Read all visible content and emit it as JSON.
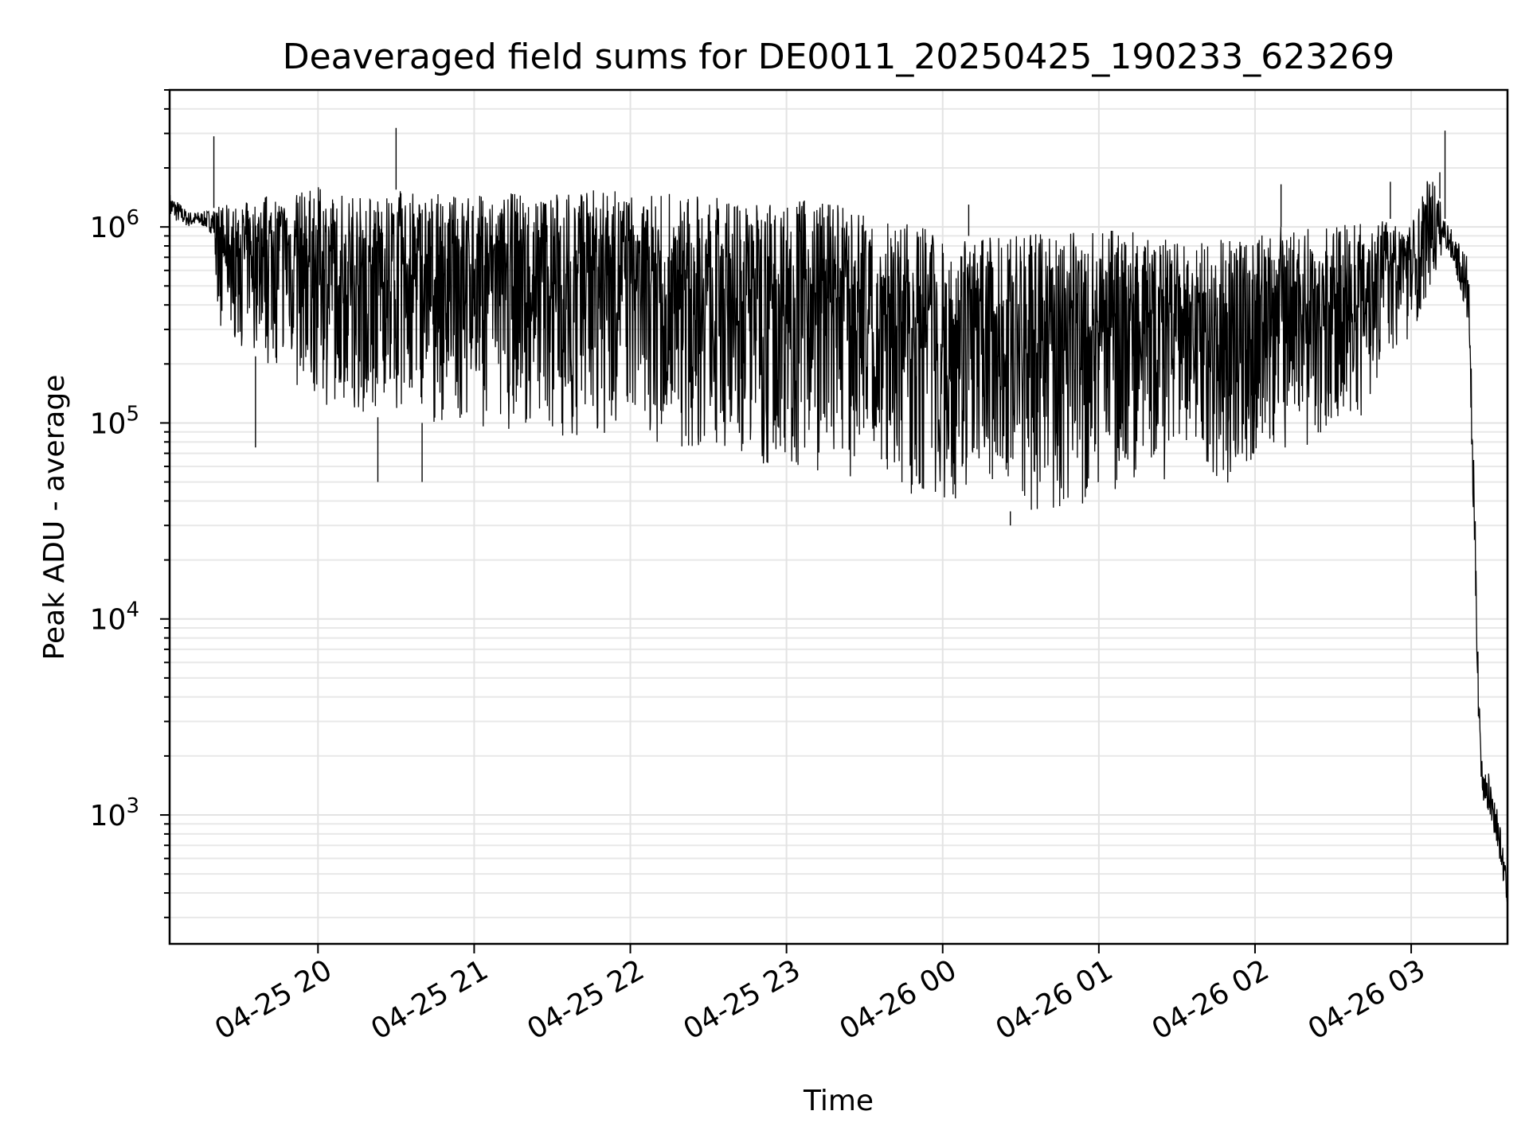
{
  "chart_data": {
    "type": "line",
    "title": "Deaveraged field sums for DE0011_20250425_190233_623269",
    "xlabel": "Time",
    "ylabel": "Peak ADU - average",
    "yscale": "log",
    "grid": "on (major and minor)",
    "line_color": "#000000",
    "x_ticks": [
      "04-25 20",
      "04-25 21",
      "04-25 22",
      "04-25 23",
      "04-26 00",
      "04-26 01",
      "04-26 02",
      "04-26 03"
    ],
    "y_ticks": [
      {
        "base": "10",
        "exp": "3",
        "value": 1000
      },
      {
        "base": "10",
        "exp": "4",
        "value": 10000
      },
      {
        "base": "10",
        "exp": "5",
        "value": 100000
      },
      {
        "base": "10",
        "exp": "6",
        "value": 1000000
      }
    ],
    "xlim": [
      "2025-04-25 19:03",
      "2025-04-26 03:37"
    ],
    "ylim": [
      220,
      5000000
    ],
    "series": [
      {
        "x": [
          "2025-04-25 19:03",
          "2025-04-25 19:10",
          "2025-04-25 19:16",
          "2025-04-25 19:20",
          "2025-04-25 19:22",
          "2025-04-25 19:30",
          "2025-04-25 19:40",
          "2025-04-25 19:50",
          "2025-04-25 20:00",
          "2025-04-25 20:10",
          "2025-04-25 20:20",
          "2025-04-25 20:30",
          "2025-04-25 20:40",
          "2025-04-25 20:50",
          "2025-04-25 21:00",
          "2025-04-25 21:10",
          "2025-04-25 21:20",
          "2025-04-25 21:30",
          "2025-04-25 21:40",
          "2025-04-25 21:50",
          "2025-04-25 22:00",
          "2025-04-25 22:10",
          "2025-04-25 22:20",
          "2025-04-25 22:30",
          "2025-04-25 22:40",
          "2025-04-25 22:50",
          "2025-04-25 23:00",
          "2025-04-25 23:10",
          "2025-04-25 23:20",
          "2025-04-25 23:30",
          "2025-04-25 23:40",
          "2025-04-25 23:50",
          "2025-04-26 00:00",
          "2025-04-26 00:10",
          "2025-04-26 00:20",
          "2025-04-26 00:30",
          "2025-04-26 00:40",
          "2025-04-26 00:50",
          "2025-04-26 01:00",
          "2025-04-26 01:10",
          "2025-04-26 01:20",
          "2025-04-26 01:30",
          "2025-04-26 01:40",
          "2025-04-26 01:50",
          "2025-04-26 02:00",
          "2025-04-26 02:10",
          "2025-04-26 02:20",
          "2025-04-26 02:30",
          "2025-04-26 02:40",
          "2025-04-26 02:50",
          "2025-04-26 03:00",
          "2025-04-26 03:08",
          "2025-04-26 03:13",
          "2025-04-26 03:17",
          "2025-04-26 03:22",
          "2025-04-26 03:26",
          "2025-04-26 03:27",
          "2025-04-26 03:30",
          "2025-04-26 03:33",
          "2025-04-26 03:36",
          "2025-04-26 03:37"
        ],
        "upper": [
          1500000,
          1200000,
          1200000,
          1250000,
          1300000,
          1300000,
          1500000,
          1500000,
          1600000,
          1500000,
          1450000,
          1550000,
          1500000,
          1450000,
          1500000,
          1450000,
          1550000,
          1500000,
          1600000,
          1550000,
          1500000,
          1450000,
          1500000,
          1450000,
          1350000,
          1350000,
          1400000,
          1400000,
          1300000,
          1200000,
          1100000,
          1000000,
          950000,
          900000,
          900000,
          900000,
          950000,
          1000000,
          950000,
          1000000,
          900000,
          850000,
          850000,
          900000,
          950000,
          1000000,
          1000000,
          1000000,
          1100000,
          1100000,
          1100000,
          2000000,
          1100000,
          900000,
          700000,
          6000,
          2000,
          1600,
          1100,
          600,
          400
        ],
        "lower": [
          1100000,
          1000000,
          1000000,
          900000,
          300000,
          250000,
          200000,
          150000,
          120000,
          110000,
          110000,
          100000,
          100000,
          95000,
          95000,
          90000,
          90000,
          85000,
          85000,
          85000,
          80000,
          75000,
          75000,
          70000,
          65000,
          60000,
          55000,
          55000,
          50000,
          48000,
          45000,
          42000,
          38000,
          36000,
          36000,
          35000,
          36000,
          38000,
          40000,
          42000,
          45000,
          45000,
          45000,
          48000,
          55000,
          60000,
          65000,
          80000,
          100000,
          200000,
          280000,
          500000,
          800000,
          600000,
          300000,
          2500,
          1200,
          1000,
          700,
          400,
          330
        ],
        "spikes": [
          {
            "x": "2025-04-25 19:20",
            "y": 2900000
          },
          {
            "x": "2025-04-25 19:36",
            "y": 75000
          },
          {
            "x": "2025-04-25 20:23",
            "y": 50000
          },
          {
            "x": "2025-04-25 20:30",
            "y": 3200000
          },
          {
            "x": "2025-04-25 20:40",
            "y": 50000
          },
          {
            "x": "2025-04-26 00:26",
            "y": 30000
          },
          {
            "x": "2025-04-26 00:10",
            "y": 1300000
          },
          {
            "x": "2025-04-26 02:10",
            "y": 1650000
          },
          {
            "x": "2025-04-26 02:52",
            "y": 1700000
          },
          {
            "x": "2025-04-26 03:13",
            "y": 3100000
          },
          {
            "x": "2025-04-26 03:11",
            "y": 1900000
          }
        ]
      }
    ]
  }
}
